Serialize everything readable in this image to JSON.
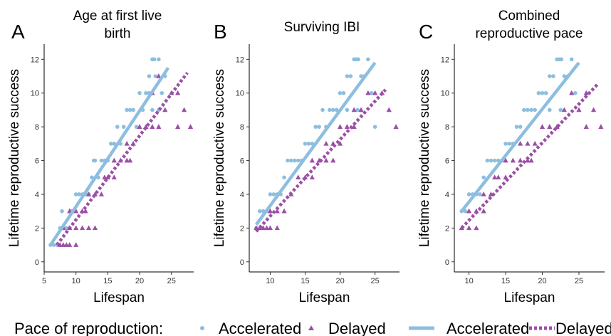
{
  "legend": {
    "title": "Pace of reproduction:",
    "items": [
      "Accelerated",
      "Delayed",
      "Accelerated",
      "Delayed"
    ]
  },
  "colors": {
    "accelerated": "#8dbedf",
    "delayed": "#9b4fa6",
    "axis": "#000000",
    "tick": "#333333"
  },
  "chart_data": [
    {
      "type": "scatter",
      "panel_label": "A",
      "title": "Age at first live birth",
      "title_lines": [
        "Age at first live",
        "birth"
      ],
      "xlabel": "Lifespan",
      "ylabel": "Lifetime reproductive success",
      "xlim": [
        5,
        28.5
      ],
      "ylim": [
        -0.6,
        12.9
      ],
      "xticks": [
        5,
        10,
        15,
        20,
        25
      ],
      "yticks": [
        0,
        2,
        4,
        6,
        8,
        10,
        12
      ],
      "grid": false,
      "legend_position": "bottom",
      "series": [
        {
          "name": "Accelerated",
          "marker": "circle",
          "points": [
            [
              6,
              1
            ],
            [
              6.5,
              1
            ],
            [
              7,
              1
            ],
            [
              7.5,
              2
            ],
            [
              7.8,
              3
            ],
            [
              8,
              2
            ],
            [
              8.5,
              2
            ],
            [
              9,
              2
            ],
            [
              9.2,
              3
            ],
            [
              9.5,
              3
            ],
            [
              10,
              4
            ],
            [
              10.5,
              4
            ],
            [
              11,
              4
            ],
            [
              11.5,
              4
            ],
            [
              12,
              4
            ],
            [
              12.5,
              5
            ],
            [
              12.8,
              6
            ],
            [
              13,
              6
            ],
            [
              13.5,
              5
            ],
            [
              14,
              6
            ],
            [
              14.5,
              6
            ],
            [
              15,
              6
            ],
            [
              15.5,
              7
            ],
            [
              16,
              7
            ],
            [
              16.5,
              8
            ],
            [
              17,
              7
            ],
            [
              17.5,
              8
            ],
            [
              18,
              9
            ],
            [
              18.5,
              9
            ],
            [
              19,
              9
            ],
            [
              19.5,
              8
            ],
            [
              20,
              10
            ],
            [
              20.5,
              9
            ],
            [
              21,
              10
            ],
            [
              21.5,
              11
            ],
            [
              22,
              12
            ],
            [
              22.3,
              12
            ],
            [
              22.5,
              11
            ],
            [
              23,
              12
            ],
            [
              23.5,
              10
            ],
            [
              24,
              11
            ],
            [
              21.5,
              10
            ],
            [
              22,
              9
            ],
            [
              23,
              9
            ]
          ]
        },
        {
          "name": "Delayed",
          "marker": "triangle",
          "points": [
            [
              7.5,
              1
            ],
            [
              8,
              1
            ],
            [
              8.5,
              1
            ],
            [
              9,
              1
            ],
            [
              10,
              1
            ],
            [
              8,
              2
            ],
            [
              9,
              2
            ],
            [
              10,
              2
            ],
            [
              11,
              2
            ],
            [
              12,
              2
            ],
            [
              13,
              2
            ],
            [
              9,
              3
            ],
            [
              10,
              3
            ],
            [
              11,
              3
            ],
            [
              11.5,
              3
            ],
            [
              12,
              4
            ],
            [
              13,
              4
            ],
            [
              14,
              4
            ],
            [
              14.5,
              5
            ],
            [
              15,
              5
            ],
            [
              16,
              5
            ],
            [
              16,
              6
            ],
            [
              17,
              6
            ],
            [
              18,
              6
            ],
            [
              18.5,
              6
            ],
            [
              18,
              7
            ],
            [
              19,
              7
            ],
            [
              20,
              8
            ],
            [
              21,
              8
            ],
            [
              22,
              8
            ],
            [
              23,
              8
            ],
            [
              24,
              9
            ],
            [
              25,
              10
            ],
            [
              26,
              10
            ],
            [
              27,
              9
            ],
            [
              28,
              8
            ],
            [
              26,
              8
            ],
            [
              22,
              10
            ],
            [
              23,
              11
            ]
          ]
        }
      ],
      "fits": [
        {
          "name": "Accelerated",
          "style": "solid",
          "x": [
            6,
            24.5
          ],
          "y": [
            1,
            11.5
          ]
        },
        {
          "name": "Delayed",
          "style": "dotted",
          "x": [
            7,
            27.5
          ],
          "y": [
            1,
            11.2
          ]
        }
      ]
    },
    {
      "type": "scatter",
      "panel_label": "B",
      "title": "Surviving IBI",
      "title_lines": [
        "Surviving IBI"
      ],
      "xlabel": "Lifespan",
      "ylabel": "Lifetime reproductive success",
      "xlim": [
        7,
        28.5
      ],
      "ylim": [
        -0.6,
        12.9
      ],
      "xticks": [
        10,
        15,
        20,
        25
      ],
      "yticks": [
        0,
        2,
        4,
        6,
        8,
        10,
        12
      ],
      "grid": false,
      "legend_position": "bottom",
      "series": [
        {
          "name": "Accelerated",
          "marker": "circle",
          "points": [
            [
              8,
              2
            ],
            [
              8.5,
              3
            ],
            [
              9,
              3
            ],
            [
              9.5,
              3
            ],
            [
              10,
              4
            ],
            [
              10.5,
              4
            ],
            [
              11,
              4
            ],
            [
              11.5,
              4
            ],
            [
              12,
              5
            ],
            [
              12.5,
              6
            ],
            [
              13,
              6
            ],
            [
              13.5,
              6
            ],
            [
              14,
              6
            ],
            [
              14.5,
              6
            ],
            [
              15,
              7
            ],
            [
              15.5,
              7
            ],
            [
              16,
              7
            ],
            [
              16.5,
              8
            ],
            [
              17,
              8
            ],
            [
              17.5,
              9
            ],
            [
              18,
              8
            ],
            [
              18.5,
              9
            ],
            [
              19,
              9
            ],
            [
              19.5,
              9
            ],
            [
              20,
              10
            ],
            [
              20.5,
              10
            ],
            [
              21,
              11
            ],
            [
              21.5,
              11
            ],
            [
              22,
              12
            ],
            [
              22.3,
              12
            ],
            [
              22.6,
              12
            ],
            [
              23,
              11
            ],
            [
              23.5,
              11
            ],
            [
              24,
              12
            ],
            [
              24.5,
              10
            ],
            [
              25,
              8
            ],
            [
              22.5,
              9
            ],
            [
              21,
              9
            ]
          ]
        },
        {
          "name": "Delayed",
          "marker": "triangle",
          "points": [
            [
              8,
              2
            ],
            [
              8.5,
              2
            ],
            [
              9,
              2
            ],
            [
              9.5,
              2
            ],
            [
              10,
              2
            ],
            [
              11,
              2
            ],
            [
              10,
              3
            ],
            [
              11,
              3
            ],
            [
              12,
              3
            ],
            [
              13,
              4
            ],
            [
              14,
              5
            ],
            [
              15,
              5
            ],
            [
              16,
              5
            ],
            [
              16,
              6
            ],
            [
              17,
              6
            ],
            [
              18,
              6
            ],
            [
              19,
              6
            ],
            [
              18,
              7
            ],
            [
              19,
              7
            ],
            [
              20,
              7
            ],
            [
              20,
              8
            ],
            [
              21,
              8
            ],
            [
              22,
              8
            ],
            [
              22,
              9
            ],
            [
              23,
              9
            ],
            [
              24,
              10
            ],
            [
              25,
              10
            ],
            [
              26,
              10
            ],
            [
              27,
              9
            ],
            [
              28,
              8
            ]
          ]
        }
      ],
      "fits": [
        {
          "name": "Accelerated",
          "style": "solid",
          "x": [
            8,
            25
          ],
          "y": [
            2.2,
            11.8
          ]
        },
        {
          "name": "Delayed",
          "style": "dotted",
          "x": [
            8,
            26.5
          ],
          "y": [
            1.8,
            10.2
          ]
        }
      ]
    },
    {
      "type": "scatter",
      "panel_label": "C",
      "title": "Combined reproductive pace",
      "title_lines": [
        "Combined",
        "reproductive pace"
      ],
      "xlabel": "Lifespan",
      "ylabel": "Lifetime reproductive success",
      "xlim": [
        8,
        28.5
      ],
      "ylim": [
        -0.6,
        12.9
      ],
      "xticks": [
        10,
        15,
        20,
        25
      ],
      "yticks": [
        0,
        2,
        4,
        6,
        8,
        10,
        12
      ],
      "grid": false,
      "legend_position": "bottom",
      "series": [
        {
          "name": "Accelerated",
          "marker": "circle",
          "points": [
            [
              9,
              3
            ],
            [
              9.5,
              3
            ],
            [
              10,
              4
            ],
            [
              10.5,
              4
            ],
            [
              11,
              4
            ],
            [
              11.5,
              4
            ],
            [
              12,
              5
            ],
            [
              12.5,
              6
            ],
            [
              13,
              6
            ],
            [
              13.5,
              6
            ],
            [
              14,
              6
            ],
            [
              14.5,
              6
            ],
            [
              15,
              7
            ],
            [
              15.5,
              7
            ],
            [
              16,
              7
            ],
            [
              16.5,
              8
            ],
            [
              17,
              8
            ],
            [
              17.5,
              9
            ],
            [
              18,
              9
            ],
            [
              18.5,
              9
            ],
            [
              19,
              9
            ],
            [
              19.5,
              10
            ],
            [
              20,
              10
            ],
            [
              20.5,
              10
            ],
            [
              21,
              11
            ],
            [
              21.5,
              11
            ],
            [
              22,
              12
            ],
            [
              22.3,
              12
            ],
            [
              22.6,
              12
            ],
            [
              23,
              11
            ],
            [
              23.5,
              11
            ],
            [
              24,
              12
            ],
            [
              24.5,
              10
            ],
            [
              22.5,
              9
            ],
            [
              21,
              9
            ]
          ]
        },
        {
          "name": "Delayed",
          "marker": "triangle",
          "points": [
            [
              9,
              2
            ],
            [
              10,
              2
            ],
            [
              11,
              2
            ],
            [
              10,
              3
            ],
            [
              11,
              3
            ],
            [
              12,
              3
            ],
            [
              12,
              4
            ],
            [
              13,
              4
            ],
            [
              13.5,
              5
            ],
            [
              14,
              5
            ],
            [
              15,
              5
            ],
            [
              15,
              6
            ],
            [
              16,
              6
            ],
            [
              17,
              6
            ],
            [
              18,
              6
            ],
            [
              18.5,
              6
            ],
            [
              17,
              7
            ],
            [
              18,
              7
            ],
            [
              19,
              7
            ],
            [
              20,
              8
            ],
            [
              21,
              8
            ],
            [
              22,
              8
            ],
            [
              23,
              9
            ],
            [
              24,
              10
            ],
            [
              25,
              9
            ],
            [
              26,
              10
            ],
            [
              27,
              9
            ],
            [
              28,
              8
            ],
            [
              26,
              8
            ]
          ]
        }
      ],
      "fits": [
        {
          "name": "Accelerated",
          "style": "solid",
          "x": [
            9,
            25
          ],
          "y": [
            3,
            11.8
          ]
        },
        {
          "name": "Delayed",
          "style": "dotted",
          "x": [
            9,
            27.5
          ],
          "y": [
            2,
            10.5
          ]
        }
      ]
    }
  ]
}
